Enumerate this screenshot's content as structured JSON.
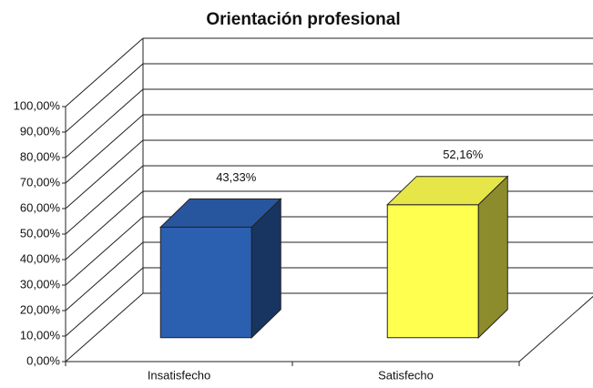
{
  "chart_data": {
    "type": "bar3d",
    "title": "Orientación profesional",
    "categories": [
      "Insatisfecho",
      "Satisfecho"
    ],
    "values": [
      43.33,
      52.16
    ],
    "value_labels": [
      "43,33%",
      "52,16%"
    ],
    "colors": [
      "#2b5fb0",
      "#ffff50"
    ],
    "ylim": [
      0,
      100
    ],
    "yticks": [
      {
        "value": 0,
        "label": "0,00%"
      },
      {
        "value": 10,
        "label": "10,00%"
      },
      {
        "value": 20,
        "label": "20,00%"
      },
      {
        "value": 30,
        "label": "30,00%"
      },
      {
        "value": 40,
        "label": "40,00%"
      },
      {
        "value": 50,
        "label": "50,00%"
      },
      {
        "value": 60,
        "label": "60,00%"
      },
      {
        "value": 70,
        "label": "70,00%"
      },
      {
        "value": 80,
        "label": "80,00%"
      },
      {
        "value": 90,
        "label": "90,00%"
      },
      {
        "value": 100,
        "label": "100,00%"
      }
    ],
    "grid": true
  }
}
